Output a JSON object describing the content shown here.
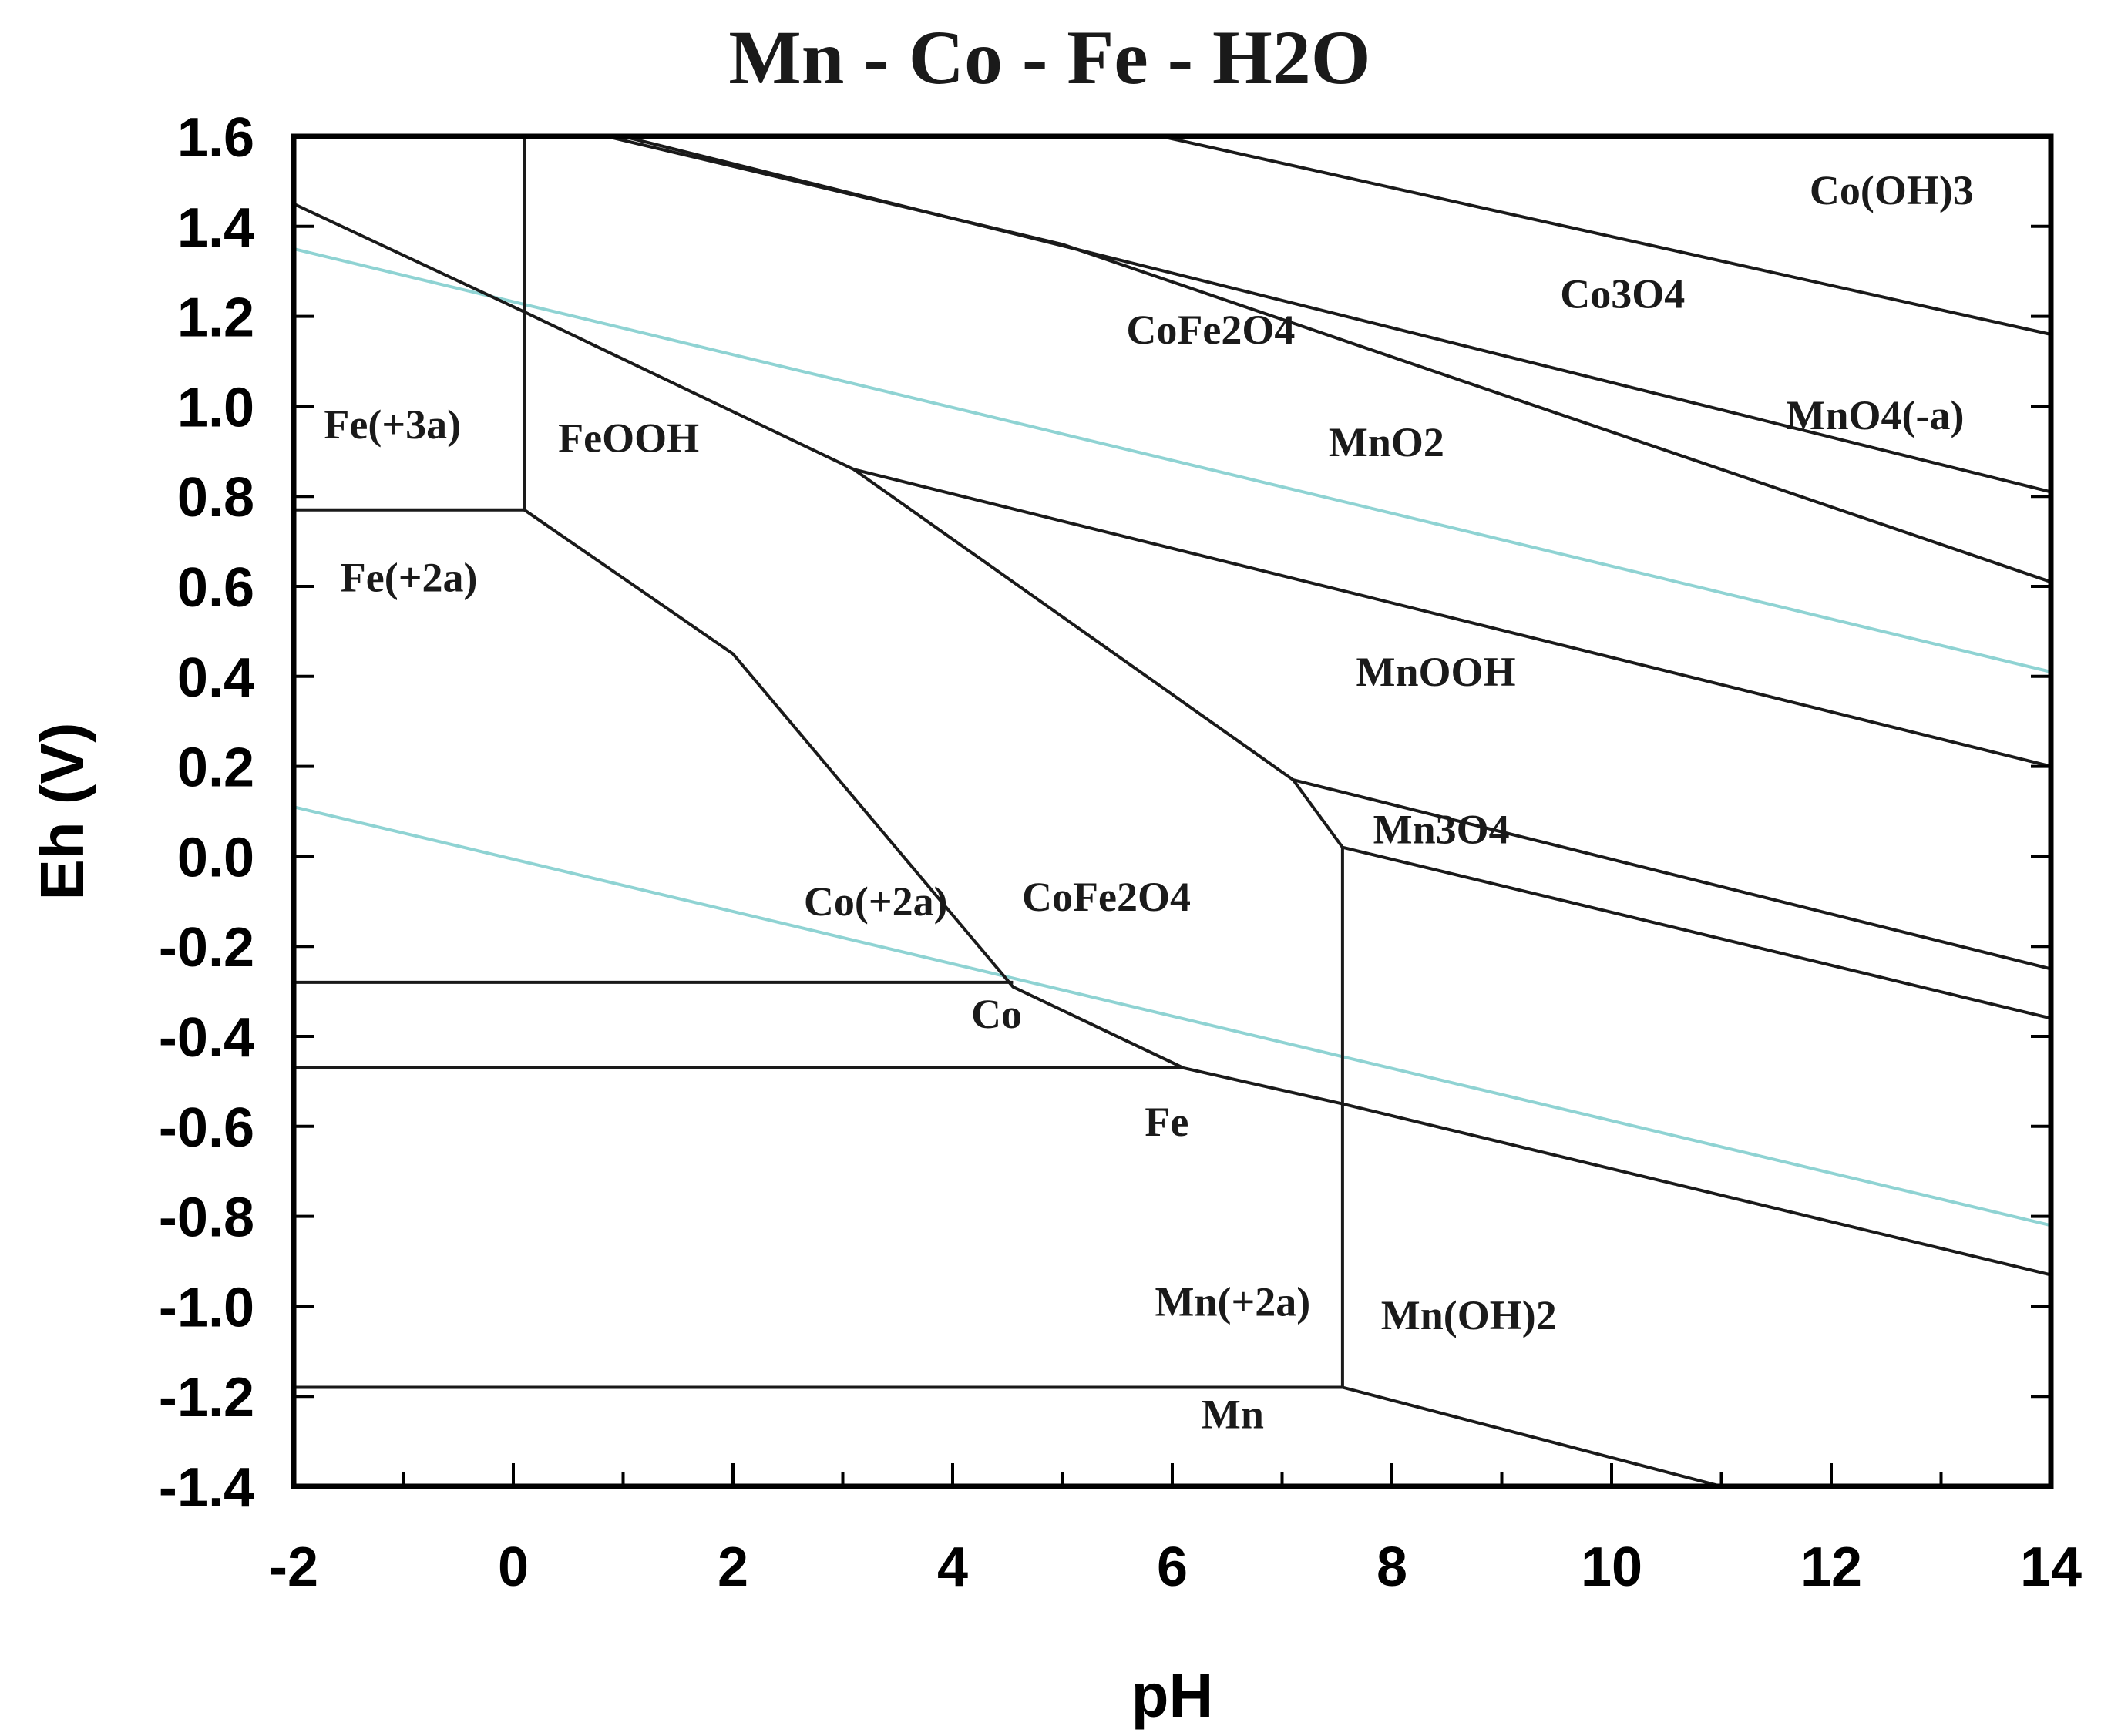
{
  "chart_data": {
    "type": "line",
    "title": "Mn - Co - Fe - H2O",
    "xlabel": "pH",
    "ylabel": "Eh (V)",
    "xlim": [
      -2,
      14
    ],
    "ylim": [
      -1.4,
      1.6
    ],
    "x_ticks": [
      -2,
      0,
      2,
      4,
      6,
      8,
      10,
      12,
      14
    ],
    "x_tick_labels": [
      "-2",
      "0",
      "2",
      "4",
      "6",
      "8",
      "10",
      "12",
      "14"
    ],
    "y_ticks": [
      1.6,
      1.4,
      1.2,
      1.0,
      0.8,
      0.6,
      0.4,
      0.2,
      0.0,
      -0.2,
      -0.4,
      -0.6,
      -0.8,
      -1.0,
      -1.2,
      -1.4
    ],
    "y_tick_labels": [
      "1.6",
      "1.4",
      "1.2",
      "1.0",
      "0.8",
      "0.6",
      "0.4",
      "0.2",
      "0.0",
      "-0.2",
      "-0.4",
      "-0.6",
      "-0.8",
      "-1.0",
      "-1.2",
      "-1.4"
    ],
    "boundaries": [
      {
        "x": [
          0.1,
          0.1
        ],
        "y": [
          1.6,
          0.77
        ]
      },
      {
        "x": [
          -2,
          0.1
        ],
        "y": [
          0.77,
          0.77
        ]
      },
      {
        "x": [
          -2,
          0.1
        ],
        "y": [
          1.45,
          1.21
        ]
      },
      {
        "x": [
          0.1,
          3.1,
          7.1,
          7.55
        ],
        "y": [
          1.21,
          0.86,
          0.17,
          0.02
        ]
      },
      {
        "x": [
          0.1,
          2.0,
          4.55,
          6.1,
          7.55,
          14
        ],
        "y": [
          0.77,
          0.45,
          -0.29,
          -0.47,
          -0.55,
          -0.93
        ]
      },
      {
        "x": [
          -2,
          4.55
        ],
        "y": [
          -0.28,
          -0.28
        ]
      },
      {
        "x": [
          -2,
          6.1
        ],
        "y": [
          -0.47,
          -0.47
        ]
      },
      {
        "x": [
          -2,
          7.55
        ],
        "y": [
          -1.18,
          -1.18
        ]
      },
      {
        "x": [
          7.55,
          7.55
        ],
        "y": [
          0.02,
          -1.18
        ]
      },
      {
        "x": [
          7.55,
          11.0
        ],
        "y": [
          -1.18,
          -1.4
        ]
      },
      {
        "x": [
          3.1,
          14
        ],
        "y": [
          0.86,
          0.2
        ]
      },
      {
        "x": [
          7.1,
          14
        ],
        "y": [
          0.17,
          -0.25
        ]
      },
      {
        "x": [
          7.55,
          14
        ],
        "y": [
          0.02,
          -0.36
        ]
      },
      {
        "x": [
          1.0,
          14
        ],
        "y": [
          1.6,
          0.81
        ]
      },
      {
        "x": [
          0.85,
          5.0,
          14
        ],
        "y": [
          1.6,
          1.36,
          0.61
        ]
      },
      {
        "x": [
          5.9,
          14
        ],
        "y": [
          1.6,
          1.16
        ]
      }
    ],
    "water_lines": [
      {
        "x": [
          -2,
          14
        ],
        "y": [
          1.35,
          0.41
        ]
      },
      {
        "x": [
          -2,
          14
        ],
        "y": [
          0.11,
          -0.82
        ]
      }
    ],
    "regions": [
      {
        "label": "Fe(+3a)",
        "x": -1.1,
        "y": 0.96
      },
      {
        "label": "Fe(+2a)",
        "x": -0.95,
        "y": 0.62
      },
      {
        "label": "FeOOH",
        "x": 1.05,
        "y": 0.93
      },
      {
        "label": "CoFe2O4",
        "x": 6.35,
        "y": 1.17
      },
      {
        "label": "MnO2",
        "x": 7.95,
        "y": 0.92
      },
      {
        "label": "Co3O4",
        "x": 10.1,
        "y": 1.25
      },
      {
        "label": "Co(OH)3",
        "x": 12.55,
        "y": 1.48
      },
      {
        "label": "MnO4(-a)",
        "x": 12.4,
        "y": 0.98
      },
      {
        "label": "MnOOH",
        "x": 8.4,
        "y": 0.41
      },
      {
        "label": "Mn3O4",
        "x": 8.45,
        "y": 0.06
      },
      {
        "label": "Co(+2a)",
        "x": 3.3,
        "y": -0.1
      },
      {
        "label": "CoFe2O4",
        "x": 5.4,
        "y": -0.09
      },
      {
        "label": "Co",
        "x": 4.4,
        "y": -0.35
      },
      {
        "label": "Fe",
        "x": 5.95,
        "y": -0.59
      },
      {
        "label": "Mn(+2a)",
        "x": 6.55,
        "y": -0.99
      },
      {
        "label": "Mn(OH)2",
        "x": 8.7,
        "y": -1.02
      },
      {
        "label": "Mn",
        "x": 6.55,
        "y": -1.24
      }
    ],
    "colors": {
      "boundary": "#1a1a1a",
      "water": "#8fd3d3",
      "frame": "#000000"
    },
    "grid": false,
    "legend": "none"
  }
}
